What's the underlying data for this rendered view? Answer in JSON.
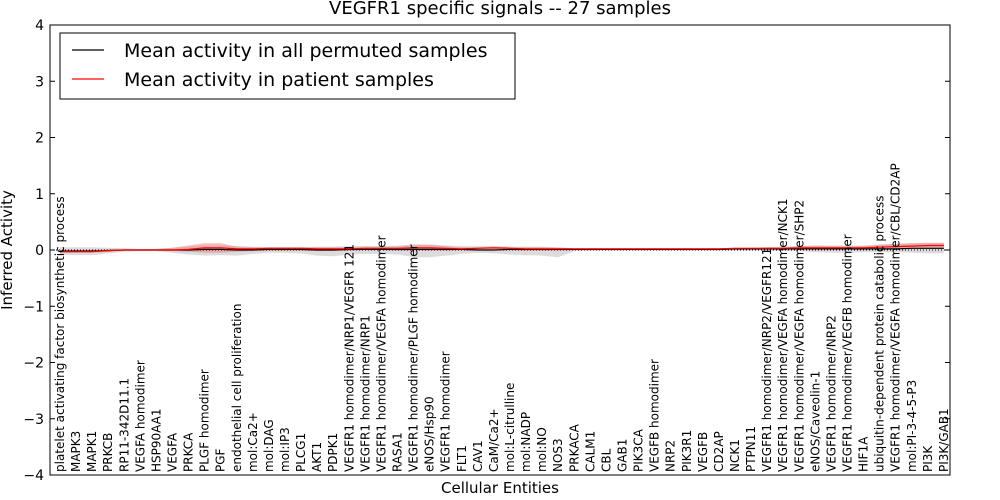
{
  "chart_data": {
    "type": "line",
    "title": "VEGFR1 specific signals -- 27 samples",
    "xlabel": "Cellular Entities",
    "ylabel": "Inferred Activity",
    "ylim": [
      -4,
      4
    ],
    "yticks": [
      "−4",
      "−3",
      "−2",
      "−1",
      "0",
      "1",
      "2",
      "3",
      "4"
    ],
    "grid": false,
    "legend_position": "top-left",
    "zero_line": "dotted",
    "categories": [
      "platelet activating factor biosynthetic process",
      "MAPK3",
      "MAPK1",
      "PRKCB",
      "RP11-342D11.1",
      "VEGFA homodimer",
      "HSP90AA1",
      "VEGFA",
      "PRKCA",
      "PLGF homodimer",
      "PGF",
      "endothelial cell proliferation",
      "mol:Ca2+",
      "mol:DAG",
      "mol:IP3",
      "PLCG1",
      "AKT1",
      "PDPK1",
      "VEGFR1 homodimer/NRP1/VEGFR 121",
      "VEGFR1 homodimer/NRP1",
      "VEGFR1 homodimer/VEGFA homodimer",
      "RASA1",
      "VEGFR1 homodimer/PLGF homodimer",
      "eNOS/Hsp90",
      "VEGFR1 homodimer",
      "FLT1",
      "CAV1",
      "CaM/Ca2+",
      "mol:L-citrulline",
      "mol:NADP",
      "mol:NO",
      "NOS3",
      "PRKACA",
      "CALM1",
      "CBL",
      "GAB1",
      "PIK3CA",
      "VEGFB homodimer",
      "NRP2",
      "PIK3R1",
      "VEGFB",
      "CD2AP",
      "NCK1",
      "PTPN11",
      "VEGFR1 homodimer/NRP2/VEGFR121",
      "VEGFR1 homodimer/VEGFA homodimer/NCK1",
      "VEGFR1 homodimer/VEGFA homodimer/SHP2",
      "eNOS/Caveolin-1",
      "VEGFR1 homodimer/NRP2",
      "VEGFR1 homodimer/VEGFB homodimer",
      "HIF1A",
      "ubiquitin-dependent protein catabolic process",
      "VEGFR1 homodimer/VEGFA homodimer/CBL/CD2AP",
      "mol:PI-3-4-5-P3",
      "PI3K",
      "PI3K/GAB1"
    ],
    "series": [
      {
        "name": "Mean activity in all permuted samples",
        "color": "#000000",
        "values": [
          -0.02,
          -0.02,
          -0.02,
          -0.01,
          0.0,
          0.0,
          0.0,
          0.0,
          0.0,
          0.01,
          0.01,
          0.0,
          0.0,
          0.01,
          0.01,
          0.01,
          0.0,
          0.0,
          0.01,
          0.01,
          0.01,
          0.01,
          0.01,
          0.01,
          0.01,
          0.01,
          0.0,
          0.0,
          0.01,
          0.01,
          0.01,
          0.01,
          0.01,
          0.01,
          0.01,
          0.01,
          0.01,
          0.01,
          0.01,
          0.01,
          0.01,
          0.01,
          0.02,
          0.02,
          0.02,
          0.02,
          0.02,
          0.02,
          0.02,
          0.02,
          0.02,
          0.02,
          0.02,
          0.03,
          0.03,
          0.03
        ],
        "band": {
          "color": "#9a9a9a",
          "lower": [
            -0.08,
            -0.09,
            -0.09,
            -0.06,
            -0.03,
            -0.02,
            -0.02,
            -0.05,
            -0.08,
            -0.1,
            -0.09,
            -0.1,
            -0.07,
            -0.05,
            -0.05,
            -0.06,
            -0.1,
            -0.11,
            -0.08,
            -0.07,
            -0.07,
            -0.08,
            -0.13,
            -0.13,
            -0.1,
            -0.07,
            -0.05,
            -0.06,
            -0.08,
            -0.09,
            -0.1,
            -0.13,
            -0.02,
            -0.01,
            -0.01,
            -0.01,
            -0.01,
            -0.01,
            -0.01,
            -0.01,
            -0.01,
            -0.01,
            -0.01,
            -0.01,
            -0.01,
            -0.02,
            -0.02,
            -0.04,
            -0.05,
            -0.05,
            -0.04,
            -0.04,
            -0.04,
            -0.05,
            -0.06,
            -0.06
          ],
          "upper": [
            0.05,
            0.05,
            0.05,
            0.04,
            0.03,
            0.02,
            0.02,
            0.04,
            0.06,
            0.08,
            0.08,
            0.07,
            0.06,
            0.05,
            0.05,
            0.05,
            0.06,
            0.06,
            0.07,
            0.07,
            0.07,
            0.08,
            0.1,
            0.1,
            0.08,
            0.07,
            0.07,
            0.07,
            0.06,
            0.06,
            0.06,
            0.05,
            0.03,
            0.03,
            0.03,
            0.03,
            0.03,
            0.03,
            0.03,
            0.03,
            0.03,
            0.03,
            0.04,
            0.04,
            0.05,
            0.06,
            0.07,
            0.08,
            0.08,
            0.08,
            0.08,
            0.1,
            0.11,
            0.12,
            0.12,
            0.12
          ]
        }
      },
      {
        "name": "Mean activity in patient samples",
        "color": "#ff0000",
        "values": [
          -0.03,
          -0.03,
          -0.03,
          -0.01,
          0.0,
          0.0,
          0.0,
          0.0,
          0.01,
          0.04,
          0.04,
          0.02,
          0.02,
          0.03,
          0.03,
          0.03,
          0.02,
          0.02,
          0.02,
          0.03,
          0.03,
          0.03,
          0.04,
          0.04,
          0.03,
          0.02,
          0.03,
          0.04,
          0.03,
          0.02,
          0.02,
          0.02,
          0.02,
          0.02,
          0.02,
          0.02,
          0.02,
          0.02,
          0.02,
          0.02,
          0.02,
          0.02,
          0.03,
          0.03,
          0.03,
          0.03,
          0.04,
          0.04,
          0.04,
          0.04,
          0.04,
          0.05,
          0.06,
          0.07,
          0.08,
          0.08
        ],
        "band": {
          "color": "#f07a7a",
          "lower": [
            -0.05,
            -0.05,
            -0.05,
            -0.03,
            -0.01,
            -0.01,
            -0.01,
            -0.02,
            -0.03,
            -0.05,
            -0.05,
            -0.03,
            -0.02,
            -0.01,
            -0.01,
            -0.01,
            -0.02,
            -0.02,
            -0.01,
            0.0,
            0.0,
            -0.01,
            -0.01,
            -0.01,
            -0.01,
            0.0,
            0.01,
            0.02,
            0.0,
            -0.01,
            -0.01,
            -0.01,
            0.0,
            0.0,
            0.0,
            0.0,
            0.0,
            0.0,
            0.0,
            0.0,
            0.0,
            0.0,
            0.01,
            0.01,
            0.01,
            0.01,
            0.01,
            0.01,
            0.01,
            0.01,
            0.01,
            0.02,
            0.03,
            0.04,
            0.04,
            0.04
          ],
          "upper": [
            0.0,
            0.0,
            0.0,
            0.01,
            0.01,
            0.01,
            0.02,
            0.04,
            0.08,
            0.12,
            0.12,
            0.06,
            0.05,
            0.05,
            0.05,
            0.05,
            0.05,
            0.05,
            0.05,
            0.06,
            0.06,
            0.06,
            0.09,
            0.09,
            0.07,
            0.05,
            0.05,
            0.06,
            0.05,
            0.05,
            0.05,
            0.04,
            0.03,
            0.03,
            0.03,
            0.03,
            0.03,
            0.03,
            0.03,
            0.03,
            0.03,
            0.03,
            0.04,
            0.04,
            0.05,
            0.05,
            0.07,
            0.08,
            0.07,
            0.07,
            0.07,
            0.09,
            0.11,
            0.12,
            0.13,
            0.13
          ]
        }
      }
    ]
  }
}
